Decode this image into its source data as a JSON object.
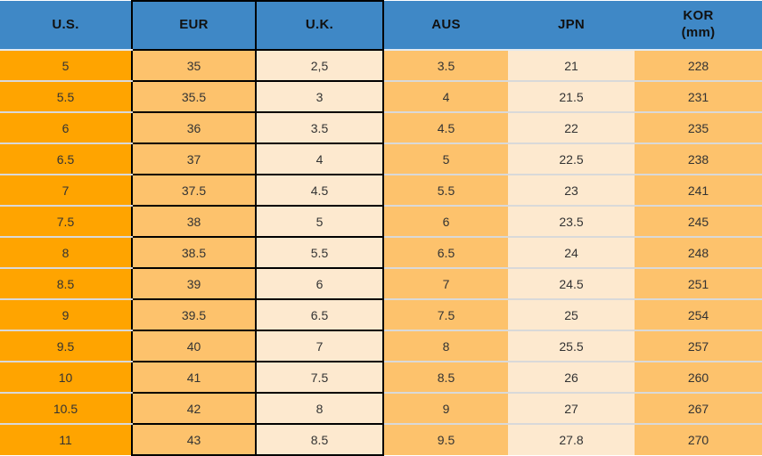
{
  "chart_data": {
    "type": "table",
    "columns": [
      {
        "label": "U.S."
      },
      {
        "label": "EUR"
      },
      {
        "label": "U.K."
      },
      {
        "label": "AUS"
      },
      {
        "label": "JPN"
      },
      {
        "label": "KOR",
        "sublabel": "(mm)"
      }
    ],
    "rows": [
      [
        "5",
        "35",
        "2,5",
        "3.5",
        "21",
        "228"
      ],
      [
        "5.5",
        "35.5",
        "3",
        "4",
        "21.5",
        "231"
      ],
      [
        "6",
        "36",
        "3.5",
        "4.5",
        "22",
        "235"
      ],
      [
        "6.5",
        "37",
        "4",
        "5",
        "22.5",
        "238"
      ],
      [
        "7",
        "37.5",
        "4.5",
        "5.5",
        "23",
        "241"
      ],
      [
        "7.5",
        "38",
        "5",
        "6",
        "23.5",
        "245"
      ],
      [
        "8",
        "38.5",
        "5.5",
        "6.5",
        "24",
        "248"
      ],
      [
        "8.5",
        "39",
        "6",
        "7",
        "24.5",
        "251"
      ],
      [
        "9",
        "39.5",
        "6.5",
        "7.5",
        "25",
        "254"
      ],
      [
        "9.5",
        "40",
        "7",
        "8",
        "25.5",
        "257"
      ],
      [
        "10",
        "41",
        "7.5",
        "8.5",
        "26",
        "260"
      ],
      [
        "10.5",
        "42",
        "8",
        "9",
        "27",
        "267"
      ],
      [
        "11",
        "43",
        "8.5",
        "9.5",
        "27.8",
        "270"
      ]
    ]
  },
  "colors": {
    "header_bg": "#3F88C6",
    "header_text": "#111111",
    "cell_text": "#333333",
    "black_border": "#000000",
    "light_row_border": "#D9D9D9",
    "header_separator": "#E4EAF0",
    "column_backgrounds": [
      "#FFA400",
      "#FDC26C",
      "#FDE9CF",
      "#FDC26C",
      "#FDE9CF",
      "#FDC26C"
    ]
  }
}
